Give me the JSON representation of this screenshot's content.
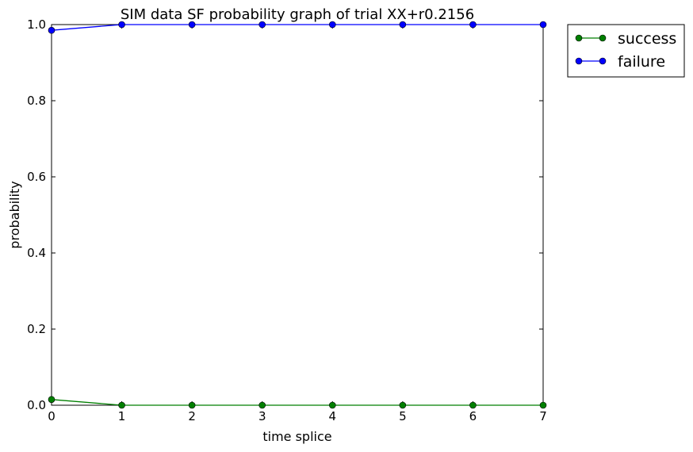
{
  "chart_data": {
    "type": "line",
    "title": "SIM data SF probability graph of trial XX+r0.2156",
    "xlabel": "time splice",
    "ylabel": "probability",
    "xlim": [
      0,
      7
    ],
    "ylim": [
      0.0,
      1.0
    ],
    "xticks": [
      "0",
      "1",
      "2",
      "3",
      "4",
      "5",
      "6",
      "7"
    ],
    "yticks": [
      "0.0",
      "0.2",
      "0.4",
      "0.6",
      "0.8",
      "1.0"
    ],
    "grid": false,
    "legend_position": "outside-top-right",
    "x": [
      0,
      1,
      2,
      3,
      4,
      5,
      6,
      7
    ],
    "series": [
      {
        "name": "success",
        "color": "#007f00",
        "values": [
          0.015,
          0.0,
          0.0,
          0.0,
          0.0,
          0.0,
          0.0,
          0.0
        ]
      },
      {
        "name": "failure",
        "color": "#0000ff",
        "values": [
          0.985,
          1.0,
          1.0,
          1.0,
          1.0,
          1.0,
          1.0,
          1.0
        ]
      }
    ]
  }
}
